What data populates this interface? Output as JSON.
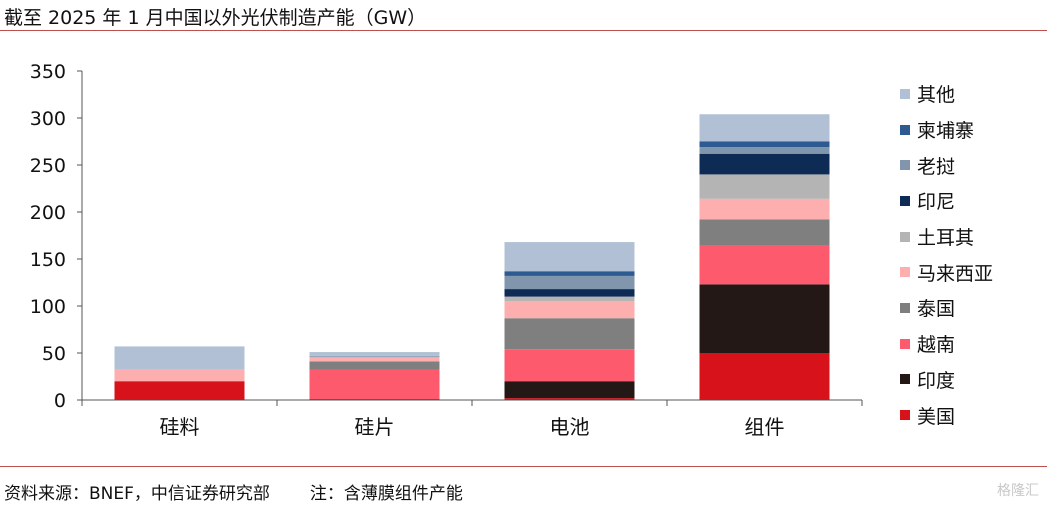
{
  "header": {
    "title": "截至 2025 年 1 月中国以外光伏制造产能（GW）"
  },
  "footer": {
    "source": "资料来源：BNEF，中信证券研究部",
    "note": "注：含薄膜组件产能"
  },
  "watermark": "格隆汇",
  "chart_data": {
    "type": "bar",
    "stacked": true,
    "categories": [
      "硅料",
      "硅片",
      "电池",
      "组件"
    ],
    "ylim": [
      0,
      350
    ],
    "yticks": [
      0,
      50,
      100,
      150,
      200,
      250,
      300,
      350
    ],
    "grid": false,
    "legend_position": "right",
    "series": [
      {
        "name": "美国",
        "color": "#d7121b",
        "values": [
          20,
          1,
          2,
          50
        ]
      },
      {
        "name": "印度",
        "color": "#231816",
        "values": [
          0,
          0,
          18,
          73
        ]
      },
      {
        "name": "越南",
        "color": "#fd5b6d",
        "values": [
          0,
          31,
          34,
          41
        ]
      },
      {
        "name": "泰国",
        "color": "#7f7f7f",
        "values": [
          0,
          9,
          33,
          28
        ]
      },
      {
        "name": "马来西亚",
        "color": "#fdaeae",
        "values": [
          13,
          4,
          18,
          22
        ]
      },
      {
        "name": "土耳其",
        "color": "#b4b4b4",
        "values": [
          0,
          1,
          5,
          26
        ]
      },
      {
        "name": "印尼",
        "color": "#0d2b54",
        "values": [
          0,
          0,
          8,
          22
        ]
      },
      {
        "name": "老挝",
        "color": "#8195ad",
        "values": [
          0,
          1,
          14,
          7
        ]
      },
      {
        "name": "柬埔寨",
        "color": "#2d5a90",
        "values": [
          0,
          0,
          5,
          6
        ]
      },
      {
        "name": "其他",
        "color": "#b1c0d5",
        "values": [
          24,
          4,
          31,
          29
        ]
      }
    ]
  }
}
